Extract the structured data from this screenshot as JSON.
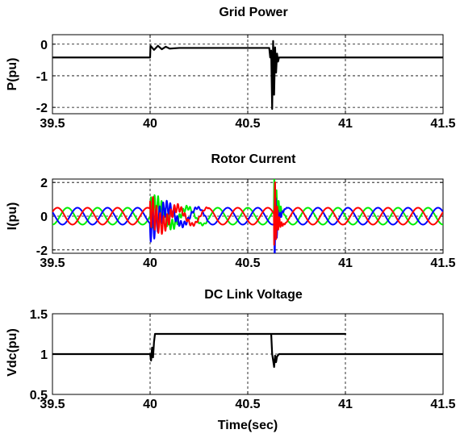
{
  "chart_data": [
    {
      "type": "line",
      "title": "Grid Power",
      "ylabel": "P(pu)",
      "xlabel": "",
      "xlim": [
        39.5,
        41.5
      ],
      "ylim": [
        -2.2,
        0.3
      ],
      "xticks": [
        39.5,
        40,
        40.5,
        41,
        41.5
      ],
      "xtick_labels": [
        "39.5",
        "40",
        "40.5",
        "41",
        "41.5"
      ],
      "yticks": [
        0,
        -1,
        -2
      ],
      "ytick_labels": [
        "0",
        "-1",
        "-2"
      ],
      "grid": true,
      "series": [
        {
          "color": "#000000",
          "x": [
            39.5,
            40.0,
            40.002,
            40.02,
            40.04,
            40.06,
            40.08,
            40.1,
            40.15,
            40.3,
            40.61,
            40.615,
            40.62,
            40.625,
            40.63,
            40.635,
            40.64,
            40.645,
            40.65,
            40.655,
            40.66,
            41.5
          ],
          "y": [
            -0.42,
            -0.42,
            -0.05,
            -0.18,
            -0.05,
            -0.16,
            -0.08,
            -0.14,
            -0.12,
            -0.12,
            -0.12,
            -0.42,
            -0.2,
            -2.05,
            0.1,
            -1.6,
            -0.1,
            -0.9,
            -0.3,
            -0.55,
            -0.42,
            -0.42
          ]
        }
      ]
    },
    {
      "type": "line",
      "title": "Rotor Current",
      "ylabel": "I(pu)",
      "xlabel": "",
      "xlim": [
        39.5,
        41.5
      ],
      "ylim": [
        -2.2,
        2.2
      ],
      "xticks": [
        39.5,
        40,
        40.5,
        41,
        41.5
      ],
      "xtick_labels": [
        "39.5",
        "40",
        "40.5",
        "41",
        "41.5"
      ],
      "yticks": [
        2,
        0,
        -2
      ],
      "ytick_labels": [
        "2",
        "0",
        "-2"
      ],
      "grid": true,
      "model": {
        "amplitude": 0.5,
        "frequency_hz": 6.5,
        "fault_time": 40.0,
        "recovery_time": 40.64,
        "fault_burst_amplitude": 1.1,
        "recovery_spike_amplitude": 2.0
      },
      "series": [
        {
          "color": "#00ee00",
          "phase_deg": 0
        },
        {
          "color": "#0000ff",
          "phase_deg": -120
        },
        {
          "color": "#ff0000",
          "phase_deg": 120
        }
      ]
    },
    {
      "type": "line",
      "title": "DC Link Voltage",
      "ylabel": "Vdc(pu)",
      "xlabel": "Time(sec)",
      "xlim": [
        39.5,
        41.5
      ],
      "ylim": [
        0.5,
        1.5
      ],
      "xticks": [
        39.5,
        40,
        40.5,
        41,
        41.5
      ],
      "xtick_labels": [
        "39.5",
        "40",
        "40.5",
        "41",
        "41.5"
      ],
      "yticks": [
        1.5,
        1,
        0.5
      ],
      "ytick_labels": [
        "1.5",
        "1",
        "0.5"
      ],
      "grid": true,
      "series": [
        {
          "color": "#000000",
          "x": [
            39.5,
            40.0,
            40.005,
            40.01,
            40.015,
            40.02,
            40.025,
            41.0,
            40.62,
            40.625,
            40.63,
            40.635,
            40.64,
            40.645,
            40.65,
            40.66,
            41.5
          ],
          "y": [
            1.0,
            1.0,
            0.92,
            1.08,
            0.96,
            1.15,
            1.25,
            1.25,
            1.25,
            1.0,
            0.92,
            0.84,
            0.98,
            0.9,
            0.97,
            1.0,
            1.0
          ]
        }
      ]
    }
  ]
}
